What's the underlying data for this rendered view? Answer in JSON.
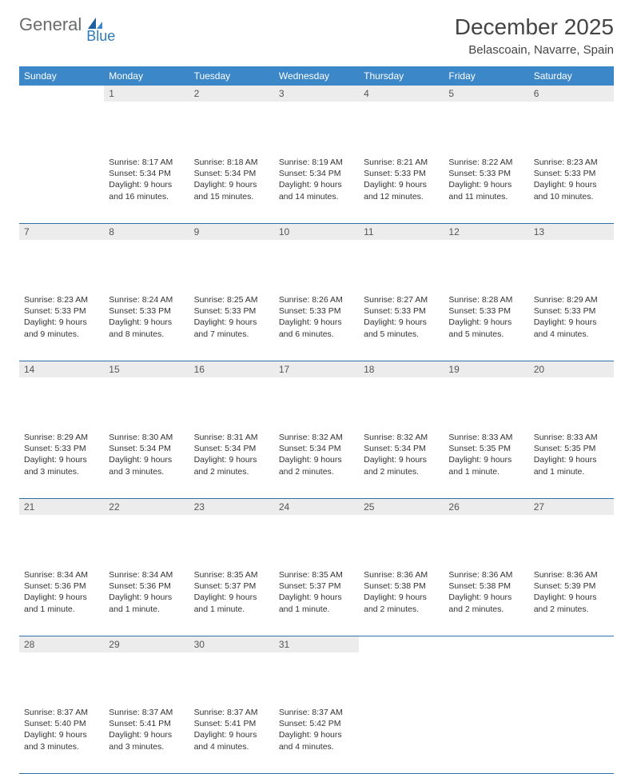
{
  "brand": {
    "part1": "General",
    "part2": "Blue"
  },
  "title": "December 2025",
  "location": "Belascoain, Navarre, Spain",
  "colors": {
    "header_bg": "#3b87c8",
    "header_text": "#ffffff",
    "daynum_bg": "#ececec",
    "body_text": "#333333",
    "rule": "#2f6fa8"
  },
  "weekdays": [
    "Sunday",
    "Monday",
    "Tuesday",
    "Wednesday",
    "Thursday",
    "Friday",
    "Saturday"
  ],
  "weeks": [
    [
      {
        "n": "",
        "sunrise": "",
        "sunset": "",
        "daylight": ""
      },
      {
        "n": "1",
        "sunrise": "Sunrise: 8:17 AM",
        "sunset": "Sunset: 5:34 PM",
        "daylight": "Daylight: 9 hours and 16 minutes."
      },
      {
        "n": "2",
        "sunrise": "Sunrise: 8:18 AM",
        "sunset": "Sunset: 5:34 PM",
        "daylight": "Daylight: 9 hours and 15 minutes."
      },
      {
        "n": "3",
        "sunrise": "Sunrise: 8:19 AM",
        "sunset": "Sunset: 5:34 PM",
        "daylight": "Daylight: 9 hours and 14 minutes."
      },
      {
        "n": "4",
        "sunrise": "Sunrise: 8:21 AM",
        "sunset": "Sunset: 5:33 PM",
        "daylight": "Daylight: 9 hours and 12 minutes."
      },
      {
        "n": "5",
        "sunrise": "Sunrise: 8:22 AM",
        "sunset": "Sunset: 5:33 PM",
        "daylight": "Daylight: 9 hours and 11 minutes."
      },
      {
        "n": "6",
        "sunrise": "Sunrise: 8:23 AM",
        "sunset": "Sunset: 5:33 PM",
        "daylight": "Daylight: 9 hours and 10 minutes."
      }
    ],
    [
      {
        "n": "7",
        "sunrise": "Sunrise: 8:23 AM",
        "sunset": "Sunset: 5:33 PM",
        "daylight": "Daylight: 9 hours and 9 minutes."
      },
      {
        "n": "8",
        "sunrise": "Sunrise: 8:24 AM",
        "sunset": "Sunset: 5:33 PM",
        "daylight": "Daylight: 9 hours and 8 minutes."
      },
      {
        "n": "9",
        "sunrise": "Sunrise: 8:25 AM",
        "sunset": "Sunset: 5:33 PM",
        "daylight": "Daylight: 9 hours and 7 minutes."
      },
      {
        "n": "10",
        "sunrise": "Sunrise: 8:26 AM",
        "sunset": "Sunset: 5:33 PM",
        "daylight": "Daylight: 9 hours and 6 minutes."
      },
      {
        "n": "11",
        "sunrise": "Sunrise: 8:27 AM",
        "sunset": "Sunset: 5:33 PM",
        "daylight": "Daylight: 9 hours and 5 minutes."
      },
      {
        "n": "12",
        "sunrise": "Sunrise: 8:28 AM",
        "sunset": "Sunset: 5:33 PM",
        "daylight": "Daylight: 9 hours and 5 minutes."
      },
      {
        "n": "13",
        "sunrise": "Sunrise: 8:29 AM",
        "sunset": "Sunset: 5:33 PM",
        "daylight": "Daylight: 9 hours and 4 minutes."
      }
    ],
    [
      {
        "n": "14",
        "sunrise": "Sunrise: 8:29 AM",
        "sunset": "Sunset: 5:33 PM",
        "daylight": "Daylight: 9 hours and 3 minutes."
      },
      {
        "n": "15",
        "sunrise": "Sunrise: 8:30 AM",
        "sunset": "Sunset: 5:34 PM",
        "daylight": "Daylight: 9 hours and 3 minutes."
      },
      {
        "n": "16",
        "sunrise": "Sunrise: 8:31 AM",
        "sunset": "Sunset: 5:34 PM",
        "daylight": "Daylight: 9 hours and 2 minutes."
      },
      {
        "n": "17",
        "sunrise": "Sunrise: 8:32 AM",
        "sunset": "Sunset: 5:34 PM",
        "daylight": "Daylight: 9 hours and 2 minutes."
      },
      {
        "n": "18",
        "sunrise": "Sunrise: 8:32 AM",
        "sunset": "Sunset: 5:34 PM",
        "daylight": "Daylight: 9 hours and 2 minutes."
      },
      {
        "n": "19",
        "sunrise": "Sunrise: 8:33 AM",
        "sunset": "Sunset: 5:35 PM",
        "daylight": "Daylight: 9 hours and 1 minute."
      },
      {
        "n": "20",
        "sunrise": "Sunrise: 8:33 AM",
        "sunset": "Sunset: 5:35 PM",
        "daylight": "Daylight: 9 hours and 1 minute."
      }
    ],
    [
      {
        "n": "21",
        "sunrise": "Sunrise: 8:34 AM",
        "sunset": "Sunset: 5:36 PM",
        "daylight": "Daylight: 9 hours and 1 minute."
      },
      {
        "n": "22",
        "sunrise": "Sunrise: 8:34 AM",
        "sunset": "Sunset: 5:36 PM",
        "daylight": "Daylight: 9 hours and 1 minute."
      },
      {
        "n": "23",
        "sunrise": "Sunrise: 8:35 AM",
        "sunset": "Sunset: 5:37 PM",
        "daylight": "Daylight: 9 hours and 1 minute."
      },
      {
        "n": "24",
        "sunrise": "Sunrise: 8:35 AM",
        "sunset": "Sunset: 5:37 PM",
        "daylight": "Daylight: 9 hours and 1 minute."
      },
      {
        "n": "25",
        "sunrise": "Sunrise: 8:36 AM",
        "sunset": "Sunset: 5:38 PM",
        "daylight": "Daylight: 9 hours and 2 minutes."
      },
      {
        "n": "26",
        "sunrise": "Sunrise: 8:36 AM",
        "sunset": "Sunset: 5:38 PM",
        "daylight": "Daylight: 9 hours and 2 minutes."
      },
      {
        "n": "27",
        "sunrise": "Sunrise: 8:36 AM",
        "sunset": "Sunset: 5:39 PM",
        "daylight": "Daylight: 9 hours and 2 minutes."
      }
    ],
    [
      {
        "n": "28",
        "sunrise": "Sunrise: 8:37 AM",
        "sunset": "Sunset: 5:40 PM",
        "daylight": "Daylight: 9 hours and 3 minutes."
      },
      {
        "n": "29",
        "sunrise": "Sunrise: 8:37 AM",
        "sunset": "Sunset: 5:41 PM",
        "daylight": "Daylight: 9 hours and 3 minutes."
      },
      {
        "n": "30",
        "sunrise": "Sunrise: 8:37 AM",
        "sunset": "Sunset: 5:41 PM",
        "daylight": "Daylight: 9 hours and 4 minutes."
      },
      {
        "n": "31",
        "sunrise": "Sunrise: 8:37 AM",
        "sunset": "Sunset: 5:42 PM",
        "daylight": "Daylight: 9 hours and 4 minutes."
      },
      {
        "n": "",
        "sunrise": "",
        "sunset": "",
        "daylight": ""
      },
      {
        "n": "",
        "sunrise": "",
        "sunset": "",
        "daylight": ""
      },
      {
        "n": "",
        "sunrise": "",
        "sunset": "",
        "daylight": ""
      }
    ]
  ]
}
